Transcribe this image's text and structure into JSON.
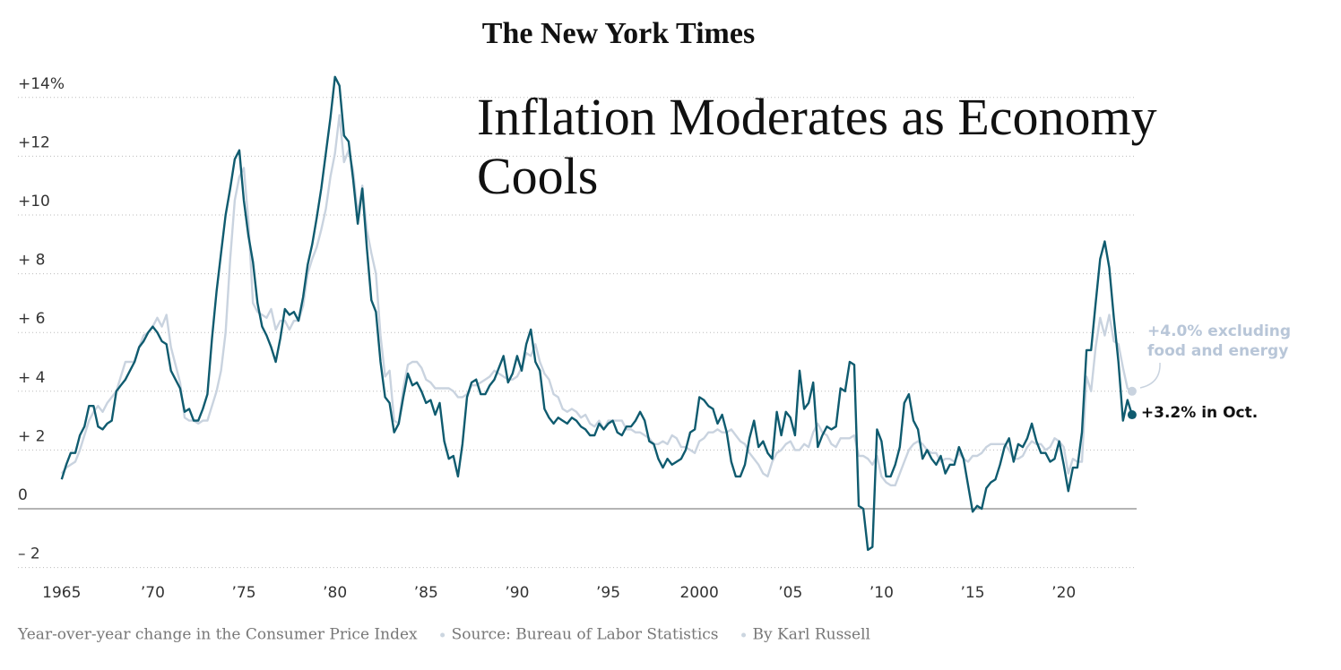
{
  "masthead": "The New York Times",
  "chart_data": {
    "type": "line",
    "title": "Inflation Moderates as Economy Cools",
    "footer": [
      "Year-over-year change in the Consumer Price Index",
      "Source: Bureau of Labor Statistics",
      "By Karl Russell"
    ],
    "annotations": [
      {
        "series": 1,
        "lines": [
          "+4.0% excluding",
          "food and energy"
        ]
      },
      {
        "series": 0,
        "lines": [
          "+3.2% in Oct."
        ]
      }
    ],
    "xlim": [
      1962.6,
      2024
    ],
    "ylim": [
      -2.5,
      15
    ],
    "xticks": [
      1965,
      {
        "value": 1970,
        "label": "’70"
      },
      {
        "value": 1975,
        "label": "’75"
      },
      {
        "value": 1980,
        "label": "’80"
      },
      {
        "value": 1985,
        "label": "’85"
      },
      {
        "value": 1990,
        "label": "’90"
      },
      {
        "value": 1995,
        "label": "’95"
      },
      2000,
      {
        "value": 2005,
        "label": "’05"
      },
      {
        "value": 2010,
        "label": "’10"
      },
      {
        "value": 2015,
        "label": "’15"
      },
      {
        "value": 2020,
        "label": "’20"
      }
    ],
    "yticks": [
      {
        "value": -2,
        "label": "– 2"
      },
      0,
      {
        "value": 2,
        "label": "+ 2"
      },
      {
        "value": 4,
        "label": "+ 4"
      },
      {
        "value": 6,
        "label": "+ 6"
      },
      {
        "value": 8,
        "label": "+ 8"
      },
      {
        "value": 10,
        "label": "+10"
      },
      {
        "value": 12,
        "label": "+12"
      },
      {
        "value": 14,
        "label": "+14%"
      }
    ],
    "grid": true,
    "x": [
      1965,
      1965.25,
      1965.5,
      1965.75,
      1966,
      1966.25,
      1966.5,
      1966.75,
      1967,
      1967.25,
      1967.5,
      1967.75,
      1968,
      1968.25,
      1968.5,
      1968.75,
      1969,
      1969.25,
      1969.5,
      1969.75,
      1970,
      1970.25,
      1970.5,
      1970.75,
      1971,
      1971.25,
      1971.5,
      1971.75,
      1972,
      1972.25,
      1972.5,
      1972.75,
      1973,
      1973.25,
      1973.5,
      1973.75,
      1974,
      1974.25,
      1974.5,
      1974.75,
      1975,
      1975.25,
      1975.5,
      1975.75,
      1976,
      1976.25,
      1976.5,
      1976.75,
      1977,
      1977.25,
      1977.5,
      1977.75,
      1978,
      1978.25,
      1978.5,
      1978.75,
      1979,
      1979.25,
      1979.5,
      1979.75,
      1980,
      1980.25,
      1980.5,
      1980.75,
      1981,
      1981.25,
      1981.5,
      1981.75,
      1982,
      1982.25,
      1982.5,
      1982.75,
      1983,
      1983.25,
      1983.5,
      1983.75,
      1984,
      1984.25,
      1984.5,
      1984.75,
      1985,
      1985.25,
      1985.5,
      1985.75,
      1986,
      1986.25,
      1986.5,
      1986.75,
      1987,
      1987.25,
      1987.5,
      1987.75,
      1988,
      1988.25,
      1988.5,
      1988.75,
      1989,
      1989.25,
      1989.5,
      1989.75,
      1990,
      1990.25,
      1990.5,
      1990.75,
      1991,
      1991.25,
      1991.5,
      1991.75,
      1992,
      1992.25,
      1992.5,
      1992.75,
      1993,
      1993.25,
      1993.5,
      1993.75,
      1994,
      1994.25,
      1994.5,
      1994.75,
      1995,
      1995.25,
      1995.5,
      1995.75,
      1996,
      1996.25,
      1996.5,
      1996.75,
      1997,
      1997.25,
      1997.5,
      1997.75,
      1998,
      1998.25,
      1998.5,
      1998.75,
      1999,
      1999.25,
      1999.5,
      1999.75,
      2000,
      2000.25,
      2000.5,
      2000.75,
      2001,
      2001.25,
      2001.5,
      2001.75,
      2002,
      2002.25,
      2002.5,
      2002.75,
      2003,
      2003.25,
      2003.5,
      2003.75,
      2004,
      2004.25,
      2004.5,
      2004.75,
      2005,
      2005.25,
      2005.5,
      2005.75,
      2006,
      2006.25,
      2006.5,
      2006.75,
      2007,
      2007.25,
      2007.5,
      2007.75,
      2008,
      2008.25,
      2008.5,
      2008.75,
      2009,
      2009.25,
      2009.5,
      2009.75,
      2010,
      2010.25,
      2010.5,
      2010.75,
      2011,
      2011.25,
      2011.5,
      2011.75,
      2012,
      2012.25,
      2012.5,
      2012.75,
      2013,
      2013.25,
      2013.5,
      2013.75,
      2014,
      2014.25,
      2014.5,
      2014.75,
      2015,
      2015.25,
      2015.5,
      2015.75,
      2016,
      2016.25,
      2016.5,
      2016.75,
      2017,
      2017.25,
      2017.5,
      2017.75,
      2018,
      2018.25,
      2018.5,
      2018.75,
      2019,
      2019.25,
      2019.5,
      2019.75,
      2020,
      2020.25,
      2020.5,
      2020.75,
      2021,
      2021.25,
      2021.5,
      2021.75,
      2022,
      2022.25,
      2022.5,
      2022.75,
      2023,
      2023.25,
      2023.5,
      2023.75
    ],
    "series": [
      {
        "color": "#0f5b6f",
        "values": [
          1.0,
          1.5,
          1.9,
          1.9,
          2.5,
          2.8,
          3.5,
          3.5,
          2.8,
          2.7,
          2.9,
          3.0,
          4.0,
          4.2,
          4.4,
          4.7,
          5.0,
          5.5,
          5.7,
          6.0,
          6.2,
          6.0,
          5.7,
          5.6,
          4.7,
          4.4,
          4.1,
          3.3,
          3.4,
          3.0,
          3.0,
          3.4,
          3.9,
          5.8,
          7.4,
          8.7,
          10.0,
          10.9,
          11.9,
          12.2,
          10.5,
          9.3,
          8.4,
          7.0,
          6.2,
          5.9,
          5.5,
          5.0,
          5.8,
          6.8,
          6.6,
          6.7,
          6.4,
          7.2,
          8.3,
          9.0,
          9.9,
          10.9,
          12.1,
          13.3,
          14.7,
          14.4,
          12.7,
          12.5,
          11.2,
          9.7,
          10.9,
          8.9,
          7.1,
          6.7,
          5.0,
          3.8,
          3.6,
          2.6,
          2.9,
          3.8,
          4.6,
          4.2,
          4.3,
          4.0,
          3.6,
          3.7,
          3.2,
          3.6,
          2.3,
          1.7,
          1.8,
          1.1,
          2.2,
          3.8,
          4.3,
          4.4,
          3.9,
          3.9,
          4.2,
          4.4,
          4.8,
          5.2,
          4.3,
          4.6,
          5.2,
          4.7,
          5.6,
          6.1,
          5.0,
          4.7,
          3.4,
          3.1,
          2.9,
          3.1,
          3.0,
          2.9,
          3.1,
          3.0,
          2.8,
          2.7,
          2.5,
          2.5,
          2.9,
          2.7,
          2.9,
          3.0,
          2.6,
          2.5,
          2.8,
          2.8,
          3.0,
          3.3,
          3.0,
          2.3,
          2.2,
          1.7,
          1.4,
          1.7,
          1.5,
          1.6,
          1.7,
          2.0,
          2.6,
          2.7,
          3.8,
          3.7,
          3.5,
          3.4,
          2.9,
          3.2,
          2.6,
          1.6,
          1.1,
          1.1,
          1.5,
          2.4,
          3.0,
          2.1,
          2.3,
          1.9,
          1.7,
          3.3,
          2.5,
          3.3,
          3.1,
          2.5,
          4.7,
          3.4,
          3.6,
          4.3,
          2.1,
          2.5,
          2.8,
          2.7,
          2.8,
          4.1,
          4.0,
          5.0,
          4.9,
          0.1,
          0.0,
          -1.4,
          -1.3,
          2.7,
          2.3,
          1.1,
          1.1,
          1.5,
          2.1,
          3.6,
          3.9,
          3.0,
          2.7,
          1.7,
          2.0,
          1.7,
          1.5,
          1.8,
          1.2,
          1.5,
          1.5,
          2.1,
          1.7,
          0.8,
          -0.1,
          0.1,
          0.0,
          0.7,
          0.9,
          1.0,
          1.5,
          2.1,
          2.4,
          1.6,
          2.2,
          2.1,
          2.4,
          2.9,
          2.3,
          1.9,
          1.9,
          1.6,
          1.7,
          2.3,
          1.5,
          0.6,
          1.4,
          1.4,
          2.6,
          5.4,
          5.4,
          7.0,
          8.5,
          9.1,
          8.2,
          6.5,
          5.0,
          3.0,
          3.7,
          3.2
        ]
      },
      {
        "color": "#c9d3df",
        "values": [
          1.2,
          1.4,
          1.5,
          1.6,
          2.0,
          2.5,
          3.0,
          3.3,
          3.5,
          3.3,
          3.6,
          3.8,
          4.0,
          4.5,
          5.0,
          5.0,
          5.0,
          5.5,
          5.9,
          6.0,
          6.2,
          6.5,
          6.2,
          6.6,
          5.5,
          4.9,
          4.3,
          3.1,
          3.0,
          3.0,
          2.9,
          3.0,
          3.0,
          3.5,
          4.0,
          4.7,
          6.0,
          8.5,
          10.5,
          11.3,
          11.6,
          9.8,
          7.0,
          6.7,
          6.6,
          6.5,
          6.8,
          6.1,
          6.4,
          6.4,
          6.1,
          6.4,
          6.4,
          6.9,
          8.0,
          8.5,
          8.9,
          9.5,
          10.2,
          11.3,
          12.1,
          13.4,
          11.8,
          12.2,
          11.5,
          10.0,
          11.0,
          9.5,
          8.7,
          8.0,
          5.9,
          4.5,
          4.7,
          3.0,
          2.9,
          4.1,
          4.9,
          5.0,
          5.0,
          4.8,
          4.4,
          4.3,
          4.1,
          4.1,
          4.1,
          4.1,
          4.0,
          3.8,
          3.8,
          3.9,
          4.2,
          4.2,
          4.3,
          4.4,
          4.5,
          4.7,
          4.6,
          4.5,
          4.4,
          4.4,
          4.5,
          4.8,
          5.3,
          5.2,
          5.6,
          5.0,
          4.6,
          4.4,
          3.9,
          3.8,
          3.4,
          3.3,
          3.4,
          3.3,
          3.1,
          3.2,
          2.9,
          2.8,
          3.0,
          2.7,
          3.0,
          3.0,
          3.0,
          3.0,
          2.7,
          2.7,
          2.6,
          2.6,
          2.5,
          2.4,
          2.2,
          2.2,
          2.3,
          2.2,
          2.5,
          2.4,
          2.1,
          2.1,
          2.0,
          1.9,
          2.3,
          2.4,
          2.6,
          2.6,
          2.7,
          2.6,
          2.6,
          2.7,
          2.5,
          2.3,
          2.2,
          1.9,
          1.7,
          1.5,
          1.2,
          1.1,
          1.6,
          1.9,
          2.0,
          2.2,
          2.3,
          2.0,
          2.0,
          2.2,
          2.1,
          2.6,
          2.9,
          2.6,
          2.5,
          2.2,
          2.1,
          2.4,
          2.4,
          2.4,
          2.5,
          1.8,
          1.8,
          1.7,
          1.5,
          1.8,
          1.1,
          0.9,
          0.8,
          0.8,
          1.2,
          1.6,
          2.0,
          2.2,
          2.3,
          2.2,
          2.0,
          1.9,
          1.9,
          1.6,
          1.7,
          1.7,
          1.6,
          1.9,
          1.7,
          1.6,
          1.8,
          1.8,
          1.9,
          2.1,
          2.2,
          2.2,
          2.2,
          2.2,
          2.0,
          1.7,
          1.7,
          1.8,
          2.1,
          2.3,
          2.2,
          2.2,
          2.0,
          2.1,
          2.4,
          2.3,
          2.1,
          1.2,
          1.7,
          1.6,
          1.6,
          4.5,
          4.0,
          5.5,
          6.5,
          5.9,
          6.6,
          5.7,
          5.6,
          4.8,
          4.1,
          4.0
        ]
      }
    ]
  }
}
